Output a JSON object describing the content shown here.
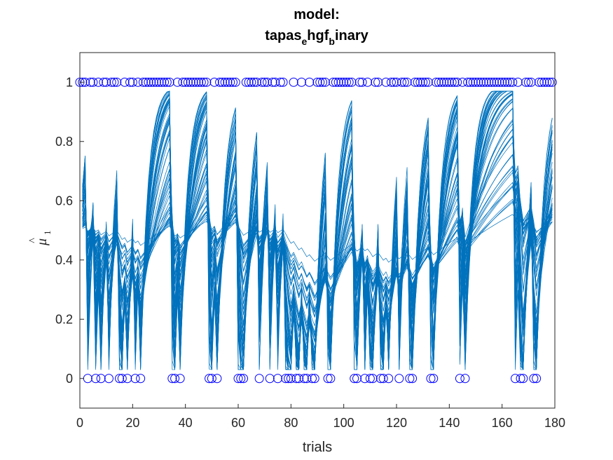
{
  "chart_data": {
    "type": "line",
    "title_line1": "model:",
    "title_segments": [
      {
        "text": "tapas",
        "sub": false
      },
      {
        "text": "e",
        "sub": true
      },
      {
        "text": "hgf",
        "sub": false
      },
      {
        "text": "b",
        "sub": true
      },
      {
        "text": "inary",
        "sub": false
      }
    ],
    "xlabel": "trials",
    "ylabel_base": "μ",
    "ylabel_hat": "^",
    "ylabel_sub": "1",
    "xlim": [
      0,
      180
    ],
    "ylim": [
      -0.1,
      1.1
    ],
    "xticks": [
      0,
      20,
      40,
      60,
      80,
      100,
      120,
      140,
      160,
      180
    ],
    "yticks": [
      0,
      0.2,
      0.4,
      0.6,
      0.8,
      1
    ],
    "ytick_labels": [
      "0",
      "0.2",
      "0.4",
      "0.6",
      "0.8",
      "1"
    ],
    "grid": false,
    "line_color": "#0072BD",
    "marker_color": "#0000FF",
    "n_trajectories": 60,
    "outcomes": [
      1,
      1,
      1,
      0,
      1,
      1,
      0,
      1,
      0,
      1,
      1,
      0,
      1,
      1,
      1,
      0,
      0,
      1,
      0,
      1,
      1,
      0,
      1,
      0,
      1,
      1,
      1,
      1,
      1,
      1,
      1,
      1,
      1,
      1,
      1,
      0,
      0,
      1,
      0,
      1,
      1,
      1,
      1,
      1,
      1,
      1,
      1,
      1,
      1,
      0,
      0,
      1,
      0,
      1,
      1,
      1,
      1,
      1,
      1,
      1,
      0,
      0,
      0,
      1,
      1,
      1,
      1,
      1,
      0,
      1,
      1,
      1,
      0,
      1,
      1,
      0,
      1,
      1,
      0,
      0,
      0,
      1,
      0,
      0,
      1,
      0,
      0,
      1,
      0,
      0,
      1,
      1,
      1,
      1,
      0,
      0,
      1,
      1,
      1,
      1,
      1,
      1,
      1,
      1,
      0,
      0,
      1,
      1,
      0,
      1,
      0,
      0,
      1,
      1,
      0,
      0,
      1,
      0,
      1,
      1,
      1,
      0,
      1,
      1,
      1,
      0,
      0,
      1,
      1,
      1,
      1,
      1,
      1,
      0,
      0,
      1,
      1,
      1,
      1,
      1,
      1,
      1,
      1,
      1,
      0,
      1,
      0,
      1,
      1,
      1,
      1,
      1,
      1,
      1,
      1,
      1,
      1,
      1,
      1,
      1,
      1,
      1,
      1,
      1,
      1,
      0,
      1,
      0,
      0,
      1,
      1,
      1,
      0,
      0,
      1,
      1,
      1,
      1,
      1,
      1
    ]
  }
}
